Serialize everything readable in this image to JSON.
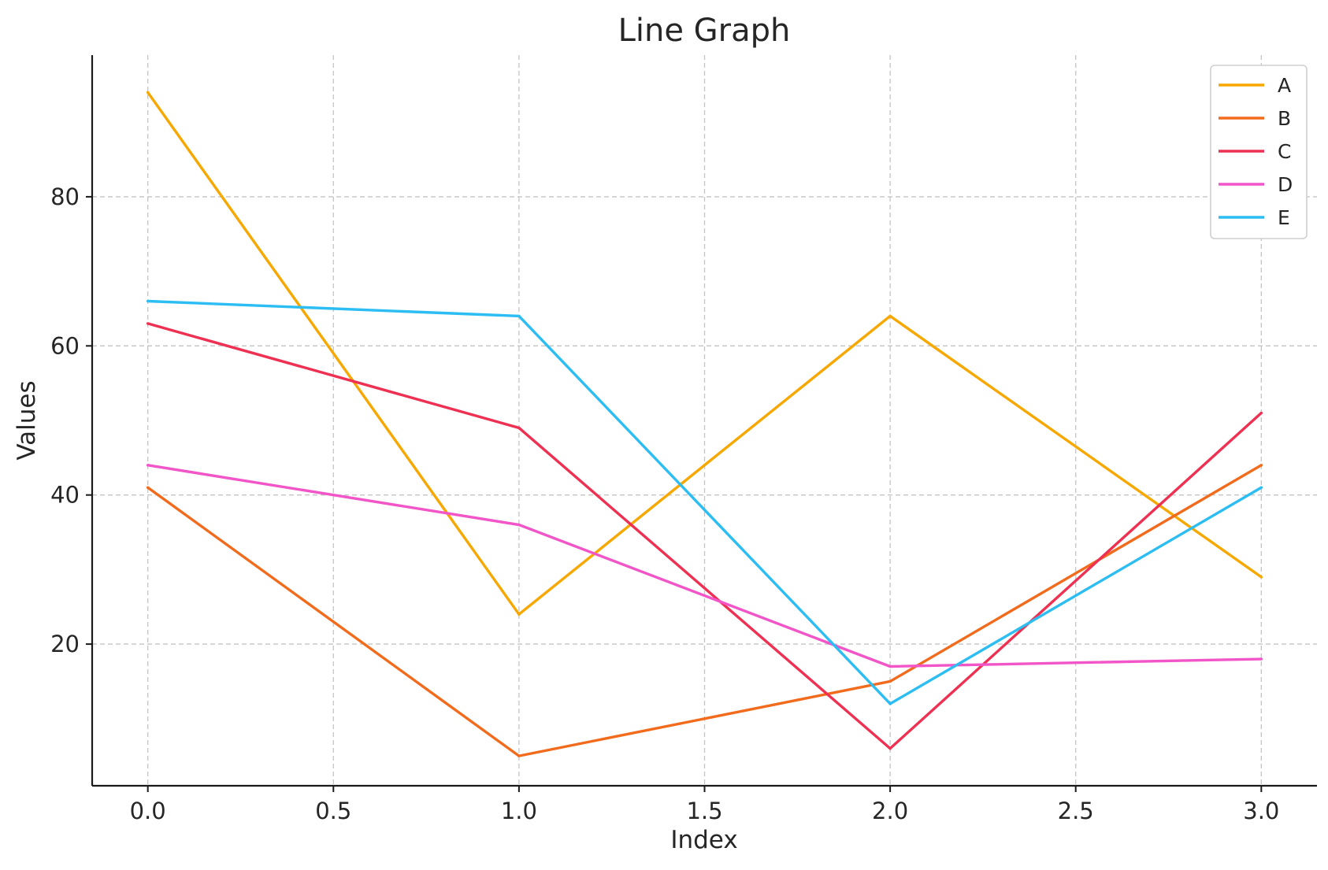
{
  "chart_data": {
    "type": "line",
    "title": "Line Graph",
    "xlabel": "Index",
    "ylabel": "Values",
    "x": [
      0,
      1,
      2,
      3
    ],
    "xlim": [
      -0.15,
      3.15
    ],
    "ylim": [
      1,
      99
    ],
    "x_ticks": [
      "0.0",
      "0.5",
      "1.0",
      "1.5",
      "2.0",
      "2.5",
      "3.0"
    ],
    "x_tick_values": [
      0,
      0.5,
      1,
      1.5,
      2,
      2.5,
      3
    ],
    "y_ticks": [
      "20",
      "40",
      "60",
      "80"
    ],
    "y_tick_values": [
      20,
      40,
      60,
      80
    ],
    "grid": true,
    "legend_position": "top-right",
    "series": [
      {
        "name": "A",
        "values": [
          94,
          24,
          64,
          29
        ],
        "color": "#F7A800"
      },
      {
        "name": "B",
        "values": [
          41,
          5,
          15,
          44
        ],
        "color": "#F26B1D"
      },
      {
        "name": "C",
        "values": [
          63,
          49,
          6,
          51
        ],
        "color": "#EE3152"
      },
      {
        "name": "D",
        "values": [
          44,
          36,
          17,
          18
        ],
        "color": "#F255C8"
      },
      {
        "name": "E",
        "values": [
          66,
          64,
          12,
          41
        ],
        "color": "#2CBDF3"
      }
    ]
  }
}
